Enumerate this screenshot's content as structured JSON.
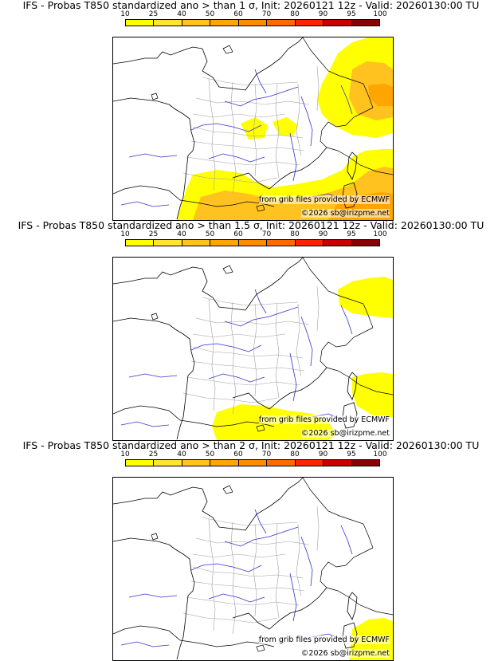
{
  "legend": {
    "ticks": [
      "10",
      "25",
      "40",
      "50",
      "60",
      "70",
      "80",
      "90",
      "95",
      "100"
    ],
    "colors": [
      "#ffff00",
      "#ffe433",
      "#ffc21f",
      "#ffa500",
      "#ff8c00",
      "#ff6a00",
      "#ff2400",
      "#c80000",
      "#8b0000",
      "#550000"
    ]
  },
  "panels": [
    {
      "title": "IFS - Probas T850  standardized ano > than 1 σ, Init: 20260121 12z - Valid: 20260130:00 TU"
    },
    {
      "title": "IFS - Probas T850  standardized ano > than 1.5 σ, Init: 20260121 12z - Valid: 20260130:00 TU"
    },
    {
      "title": "IFS - Probas T850  standardized ano > than 2 σ, Init: 20260121 12z - Valid: 20260130:00 TU"
    }
  ],
  "credits": {
    "source": "from grib files provided by ECMWF",
    "copyright": "©2026 sb@irizpme.net"
  },
  "style": {
    "coast_color": "#000000",
    "border_color": "#000000",
    "river_color": "#3333cc",
    "department_color": "#a0a0a0",
    "prob_low": "#ffff00",
    "prob_mid": "#ffc21f",
    "prob_high": "#ffa500",
    "prob_higher": "#ff8c00"
  }
}
